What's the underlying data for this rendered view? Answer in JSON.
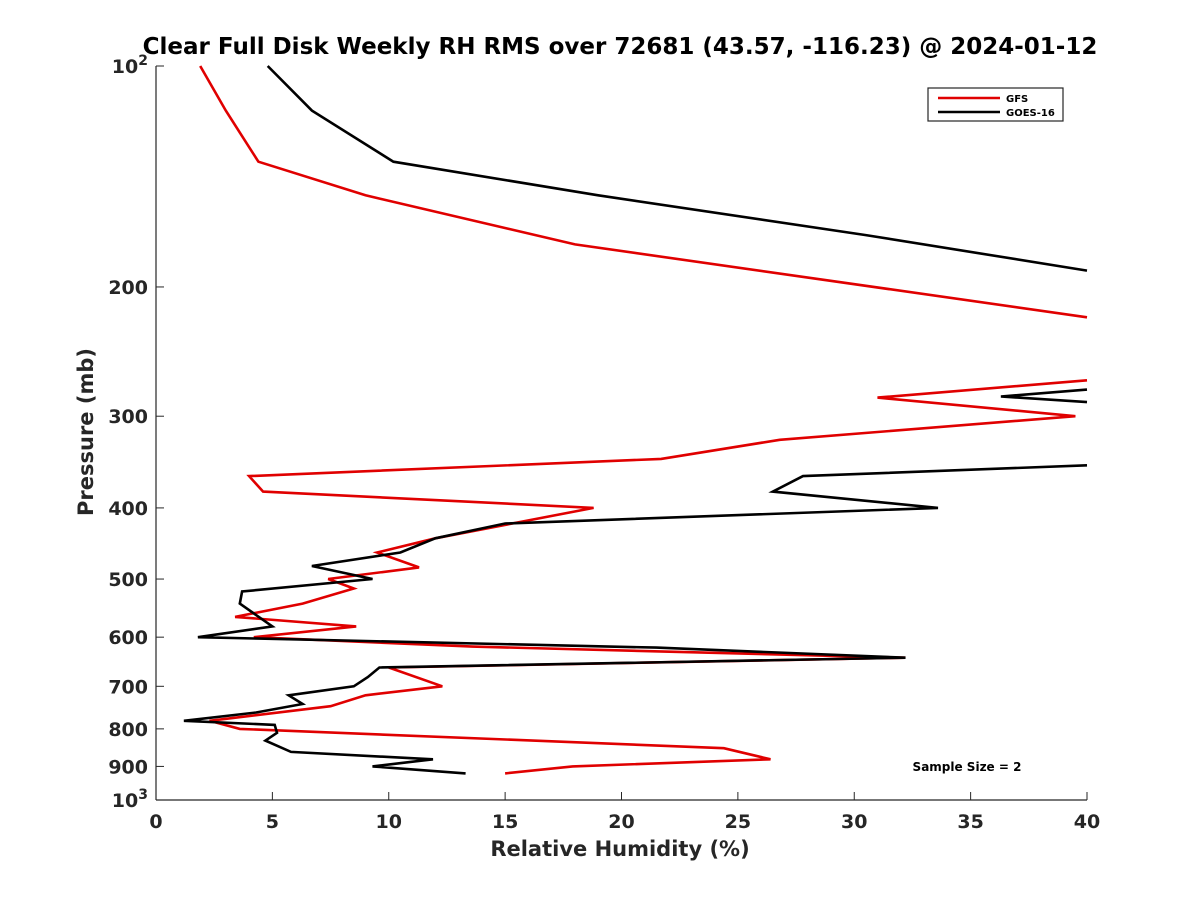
{
  "chart_data": {
    "type": "line",
    "title": "Clear Full Disk Weekly RH RMS over 72681 (43.57, -116.23) @ 2024-01-12",
    "xlabel": "Relative Humidity (%)",
    "ylabel": "Pressure (mb)",
    "xlim": [
      0,
      40
    ],
    "ylim": [
      100,
      1000
    ],
    "yscale": "log",
    "y_reversed": true,
    "grid": false,
    "legend_position": "top-right",
    "x_ticks": [
      0,
      5,
      10,
      15,
      20,
      25,
      30,
      35,
      40
    ],
    "x_tick_labels": [
      "0",
      "5",
      "10",
      "15",
      "20",
      "25",
      "30",
      "35",
      "40"
    ],
    "y_ticks": [
      100,
      200,
      300,
      400,
      500,
      600,
      700,
      800,
      900,
      1000
    ],
    "y_tick_labels": [
      "10²",
      "200",
      "300",
      "400",
      "500",
      "600",
      "700",
      "800",
      "900",
      "10³"
    ],
    "series": [
      {
        "name": "GFS",
        "color": "#e00000",
        "points": [
          [
            1.9,
            100
          ],
          [
            3.0,
            115
          ],
          [
            4.4,
            135
          ],
          [
            9.0,
            150
          ],
          [
            18.0,
            175
          ],
          [
            40,
            220
          ],
          [
            null,
            null
          ],
          [
            40,
            268
          ],
          [
            31.0,
            283
          ],
          [
            39.5,
            300
          ],
          [
            26.8,
            323
          ],
          [
            21.7,
            343
          ],
          [
            4.0,
            362
          ],
          [
            4.6,
            380
          ],
          [
            18.8,
            400
          ],
          [
            12.0,
            440
          ],
          [
            9.5,
            460
          ],
          [
            11.3,
            482
          ],
          [
            7.4,
            500
          ],
          [
            8.5,
            515
          ],
          [
            6.3,
            540
          ],
          [
            3.4,
            563
          ],
          [
            8.6,
            580
          ],
          [
            4.2,
            600
          ],
          [
            13.6,
            618
          ],
          [
            32.2,
            640
          ],
          [
            10.0,
            660
          ],
          [
            12.3,
            700
          ],
          [
            9.0,
            720
          ],
          [
            7.5,
            745
          ],
          [
            2.3,
            780
          ],
          [
            3.6,
            800
          ],
          [
            24.4,
            850
          ],
          [
            26.4,
            880
          ],
          [
            17.9,
            900
          ],
          [
            15.0,
            920
          ]
        ]
      },
      {
        "name": "GOES-16",
        "color": "#000000",
        "points": [
          [
            4.8,
            100
          ],
          [
            6.7,
            115
          ],
          [
            10.2,
            135
          ],
          [
            19.0,
            150
          ],
          [
            30.5,
            170
          ],
          [
            40,
            190
          ],
          [
            null,
            null
          ],
          [
            40,
            276
          ],
          [
            36.3,
            282
          ],
          [
            40,
            287
          ],
          [
            null,
            null
          ],
          [
            40,
            350
          ],
          [
            27.8,
            362
          ],
          [
            26.5,
            380
          ],
          [
            33.6,
            400
          ],
          [
            15.0,
            420
          ],
          [
            12.0,
            440
          ],
          [
            10.5,
            460
          ],
          [
            6.7,
            480
          ],
          [
            9.3,
            500
          ],
          [
            3.7,
            520
          ],
          [
            3.6,
            540
          ],
          [
            5.0,
            580
          ],
          [
            1.8,
            600
          ],
          [
            21.5,
            620
          ],
          [
            32.2,
            640
          ],
          [
            9.6,
            660
          ],
          [
            9.1,
            680
          ],
          [
            8.5,
            700
          ],
          [
            5.7,
            720
          ],
          [
            6.3,
            740
          ],
          [
            4.3,
            760
          ],
          [
            1.2,
            780
          ],
          [
            5.1,
            790
          ],
          [
            5.2,
            810
          ],
          [
            4.7,
            830
          ],
          [
            5.8,
            860
          ],
          [
            11.9,
            880
          ],
          [
            9.3,
            900
          ],
          [
            13.3,
            920
          ]
        ]
      }
    ],
    "annotation": "Sample Size = 2"
  }
}
